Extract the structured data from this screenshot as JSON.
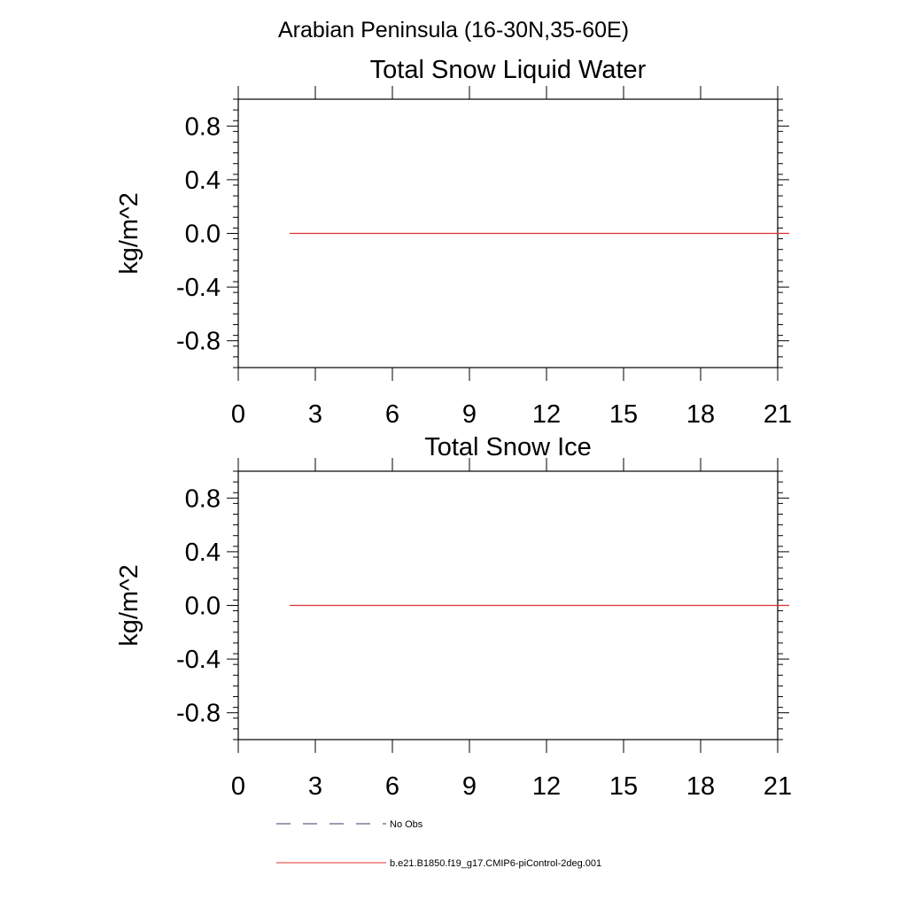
{
  "figure": {
    "title": "Arabian Peninsula (16-30N,35-60E)"
  },
  "chart_data": [
    {
      "type": "line",
      "title": "Total Snow Liquid Water",
      "xlabel": "",
      "ylabel": "kg/m^2",
      "xlim": [
        0,
        21
      ],
      "ylim": [
        -1,
        1
      ],
      "xticks": [
        0,
        3,
        6,
        9,
        12,
        15,
        18,
        21
      ],
      "xtick_labels": [
        "0",
        "3",
        "6",
        "9",
        "12",
        "15",
        "18",
        "21"
      ],
      "yticks": [
        0.8,
        0.4,
        0.0,
        -0.4,
        -0.8
      ],
      "ytick_labels": [
        "0.8",
        "0.4",
        "0.0",
        "-0.4",
        "-0.8"
      ],
      "grid": false,
      "series": [
        {
          "name": "b.e21.B1850.f19_g17.CMIP6-piControl-2deg.001",
          "color": "#e03030",
          "x": [
            2,
            21
          ],
          "y": [
            0,
            0
          ]
        }
      ]
    },
    {
      "type": "line",
      "title": "Total Snow Ice",
      "xlabel": "",
      "ylabel": "kg/m^2",
      "xlim": [
        0,
        21
      ],
      "ylim": [
        -1,
        1
      ],
      "xticks": [
        0,
        3,
        6,
        9,
        12,
        15,
        18,
        21
      ],
      "xtick_labels": [
        "0",
        "3",
        "6",
        "9",
        "12",
        "15",
        "18",
        "21"
      ],
      "yticks": [
        0.8,
        0.4,
        0.0,
        -0.4,
        -0.8
      ],
      "ytick_labels": [
        "0.8",
        "0.4",
        "0.0",
        "-0.4",
        "-0.8"
      ],
      "grid": false,
      "series": [
        {
          "name": "b.e21.B1850.f19_g17.CMIP6-piControl-2deg.001",
          "color": "#e03030",
          "x": [
            2,
            21
          ],
          "y": [
            0,
            0
          ]
        }
      ]
    }
  ],
  "legend": {
    "placement": "bottom-left",
    "entries": [
      {
        "label": "No Obs",
        "style": "dashed",
        "color": "#3a3a6a"
      },
      {
        "label": "b.e21.B1850.f19_g17.CMIP6-piControl-2deg.001",
        "style": "solid",
        "color": "#e03030"
      }
    ]
  }
}
